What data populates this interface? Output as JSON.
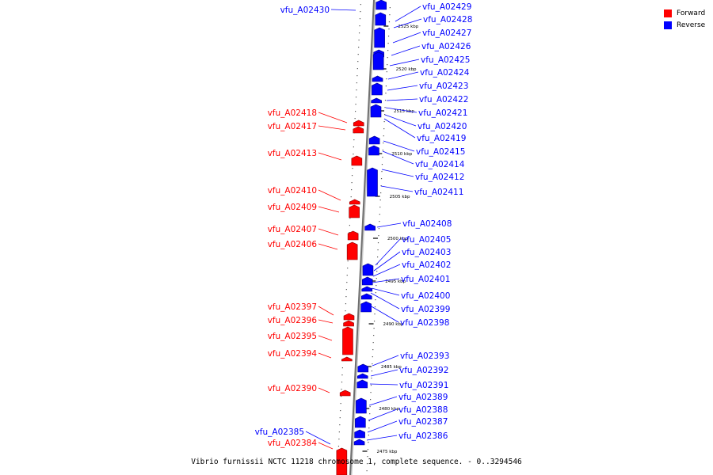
{
  "legend": {
    "forward_label": "Forward",
    "reverse_label": "Reverse",
    "forward_color": "#ff0000",
    "reverse_color": "#0000ff"
  },
  "caption": "Vibrio furnissii NCTC 11218 chromosome 1, complete sequence. - 0..3294546",
  "ticks": [
    "2525 kbp",
    "2520 kbp",
    "2515 kbp",
    "2510 kbp",
    "2505 kbp",
    "2500 kbp",
    "2495 kbp",
    "2490 kbp",
    "2485 kbp",
    "2480 kbp",
    "2475 kbp"
  ],
  "forward_genes": [
    "vfu_A02418",
    "vfu_A02417",
    "vfu_A02413",
    "vfu_A02410",
    "vfu_A02409",
    "vfu_A02407",
    "vfu_A02406",
    "vfu_A02397",
    "vfu_A02396",
    "vfu_A02395",
    "vfu_A02394",
    "vfu_A02390",
    "vfu_A02384"
  ],
  "reverse_genes": [
    "vfu_A02430",
    "vfu_A02429",
    "vfu_A02428",
    "vfu_A02427",
    "vfu_A02426",
    "vfu_A02425",
    "vfu_A02424",
    "vfu_A02423",
    "vfu_A02422",
    "vfu_A02421",
    "vfu_A02420",
    "vfu_A02419",
    "vfu_A02415",
    "vfu_A02414",
    "vfu_A02412",
    "vfu_A02411",
    "vfu_A02408",
    "vfu_A02405",
    "vfu_A02403",
    "vfu_A02402",
    "vfu_A02401",
    "vfu_A02400",
    "vfu_A02399",
    "vfu_A02398",
    "vfu_A02393",
    "vfu_A02392",
    "vfu_A02391",
    "vfu_A02389",
    "vfu_A02388",
    "vfu_A02387",
    "vfu_A02386",
    "vfu_A02385"
  ]
}
